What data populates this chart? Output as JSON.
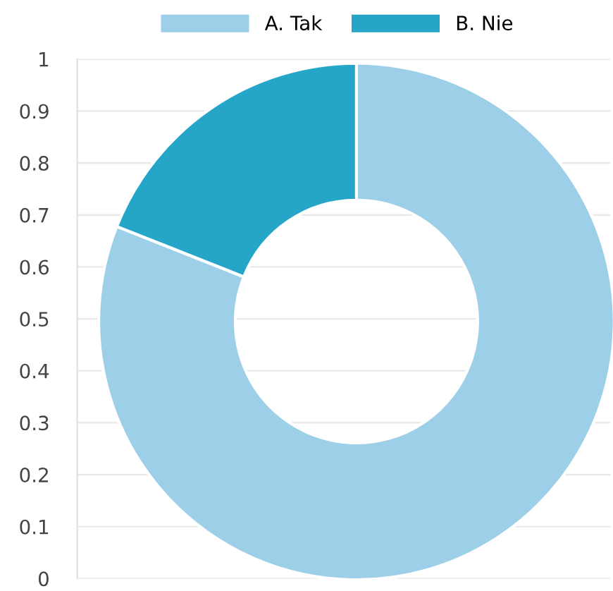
{
  "chart_data": {
    "type": "donut",
    "categories": [
      "A. Tak",
      "B. Nie"
    ],
    "values": [
      81,
      19
    ],
    "colors": [
      "#9dcfe8",
      "#25a6c8"
    ],
    "annotations": [
      "0",
      "0.1",
      "0.2",
      "0.3",
      "0.4",
      "0.5",
      "0.6",
      "0.7",
      "0.8",
      "0.9",
      "1"
    ],
    "grid": "y",
    "legend": "top"
  }
}
